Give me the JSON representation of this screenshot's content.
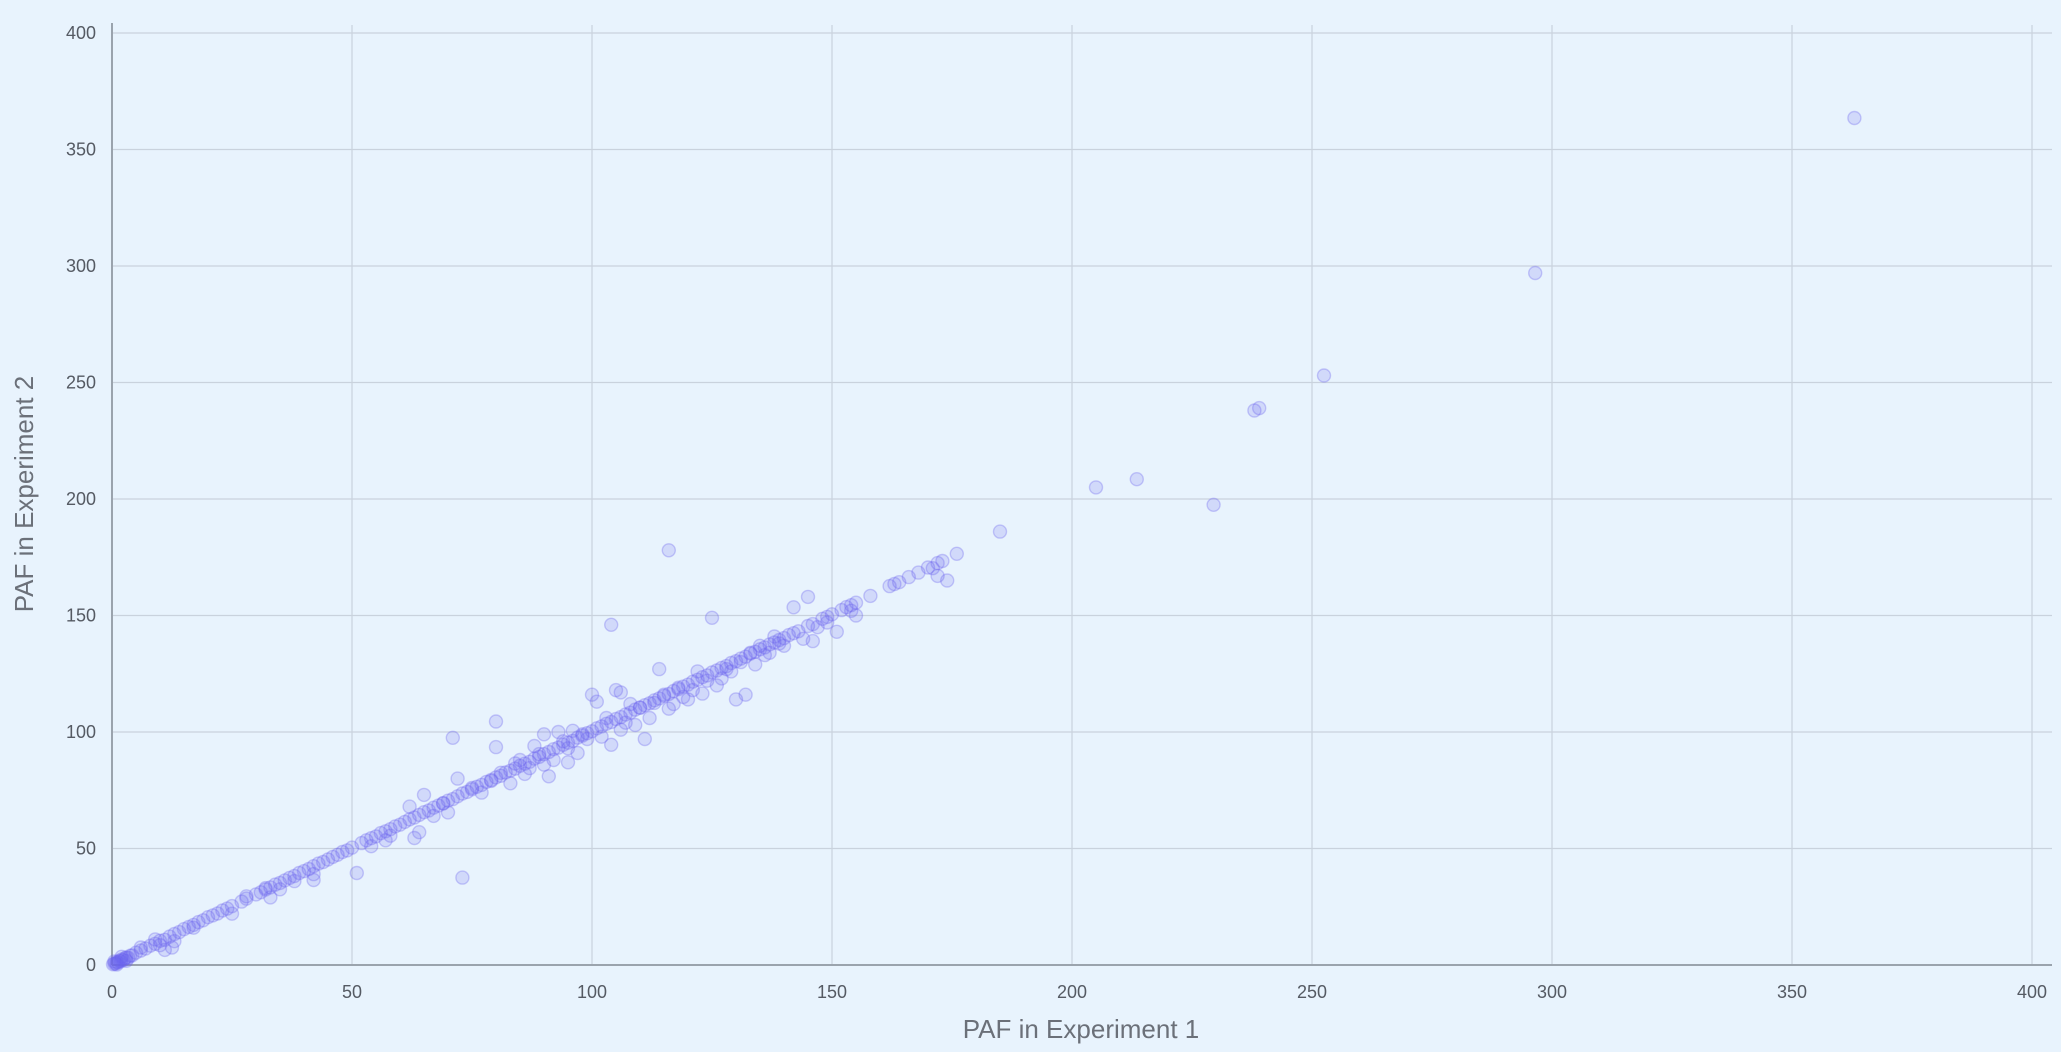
{
  "chart_data": {
    "type": "scatter",
    "title": "",
    "xlabel": "PAF in Experiment 1",
    "ylabel": "PAF in Experiment 2",
    "xlim": [
      0,
      400
    ],
    "ylim": [
      0,
      400
    ],
    "x_ticks": [
      0,
      50,
      100,
      150,
      200,
      250,
      300,
      350,
      400
    ],
    "y_ticks": [
      0,
      50,
      100,
      150,
      200,
      250,
      300,
      350,
      400
    ],
    "grid": true,
    "marker_color": "#6c63f0",
    "marker_opacity": 0.18,
    "series": [
      {
        "points": [
          [
            0.2,
            0.3
          ],
          [
            0.5,
            0.6
          ],
          [
            0.8,
            0.7
          ],
          [
            1,
            1.2
          ],
          [
            1.3,
            1.1
          ],
          [
            1.5,
            1.8
          ],
          [
            1.8,
            1.6
          ],
          [
            2,
            2.3
          ],
          [
            2.4,
            2.1
          ],
          [
            2.7,
            2.9
          ],
          [
            3,
            3.2
          ],
          [
            3.4,
            3.1
          ],
          [
            3.8,
            4
          ],
          [
            4.2,
            4.1
          ],
          [
            5,
            5.3
          ],
          [
            6,
            6.2
          ],
          [
            7,
            7.1
          ],
          [
            8,
            8.3
          ],
          [
            9,
            9.1
          ],
          [
            10,
            10.4
          ],
          [
            11,
            10.8
          ],
          [
            12,
            12.2
          ],
          [
            13,
            13.3
          ],
          [
            14,
            14.1
          ],
          [
            15,
            15.4
          ],
          [
            16,
            16.3
          ],
          [
            17,
            17.2
          ],
          [
            18,
            18.4
          ],
          [
            19,
            19.2
          ],
          [
            20,
            20.5
          ],
          [
            21,
            21.3
          ],
          [
            22,
            22.1
          ],
          [
            23,
            23.4
          ],
          [
            24,
            24.2
          ],
          [
            25,
            25.3
          ],
          [
            27,
            27.2
          ],
          [
            28,
            28.5
          ],
          [
            30,
            30.3
          ],
          [
            31,
            31.2
          ],
          [
            32,
            32.4
          ],
          [
            33,
            33.3
          ],
          [
            34,
            34.5
          ],
          [
            35,
            35.2
          ],
          [
            36,
            36.3
          ],
          [
            37,
            37.4
          ],
          [
            38,
            38.2
          ],
          [
            39,
            39.5
          ],
          [
            40,
            40.3
          ],
          [
            41,
            41.2
          ],
          [
            42,
            42.4
          ],
          [
            43,
            43.5
          ],
          [
            44,
            44.2
          ],
          [
            45,
            45.3
          ],
          [
            46,
            46.4
          ],
          [
            47,
            47.3
          ],
          [
            48,
            48.5
          ],
          [
            49,
            49.2
          ],
          [
            50,
            50.4
          ],
          [
            52,
            52.3
          ],
          [
            53,
            53.5
          ],
          [
            54,
            54.4
          ],
          [
            55,
            55.2
          ],
          [
            56,
            56.6
          ],
          [
            57,
            57.4
          ],
          [
            58,
            58.3
          ],
          [
            59,
            59.5
          ],
          [
            60,
            60.2
          ],
          [
            61,
            61.4
          ],
          [
            62,
            62.5
          ],
          [
            63,
            63.3
          ],
          [
            64,
            64.4
          ],
          [
            65,
            65.6
          ],
          [
            66,
            66.3
          ],
          [
            67,
            67.5
          ],
          [
            68,
            68.4
          ],
          [
            69,
            69.3
          ],
          [
            70,
            70.5
          ],
          [
            71,
            71.2
          ],
          [
            72,
            72.4
          ],
          [
            73,
            73.6
          ],
          [
            74,
            74.3
          ],
          [
            75,
            75.4
          ],
          [
            76,
            76.5
          ],
          [
            77,
            77.3
          ],
          [
            78,
            78.6
          ],
          [
            79,
            79.4
          ],
          [
            80,
            80.5
          ],
          [
            81,
            81.2
          ],
          [
            82,
            82.6
          ],
          [
            83,
            83.4
          ],
          [
            84,
            84.3
          ],
          [
            85,
            85.5
          ],
          [
            86,
            86.4
          ],
          [
            87,
            87.2
          ],
          [
            88,
            88.6
          ],
          [
            89,
            89.3
          ],
          [
            90,
            90.5
          ],
          [
            91,
            91.4
          ],
          [
            92,
            92.6
          ],
          [
            93,
            93.3
          ],
          [
            94,
            94.5
          ],
          [
            95,
            95.4
          ],
          [
            96,
            96.2
          ],
          [
            97,
            97.6
          ],
          [
            98,
            98.4
          ],
          [
            99,
            99.5
          ],
          [
            100,
            100.3
          ],
          [
            101,
            101.6
          ],
          [
            102,
            102.4
          ],
          [
            103,
            103.5
          ],
          [
            104,
            104.3
          ],
          [
            105,
            105.6
          ],
          [
            106,
            106.4
          ],
          [
            107,
            107.5
          ],
          [
            108,
            108.3
          ],
          [
            109,
            109.6
          ],
          [
            110,
            110.4
          ],
          [
            111,
            111.5
          ],
          [
            112,
            112.3
          ],
          [
            113,
            113.6
          ],
          [
            114,
            114.4
          ],
          [
            115,
            115.5
          ],
          [
            116,
            116.3
          ],
          [
            117,
            117.6
          ],
          [
            118,
            118.4
          ],
          [
            119,
            119.5
          ],
          [
            120,
            120.3
          ],
          [
            121,
            121.6
          ],
          [
            122,
            122.4
          ],
          [
            123,
            123.5
          ],
          [
            124,
            124.3
          ],
          [
            125,
            125.6
          ],
          [
            126,
            126.4
          ],
          [
            127,
            127.5
          ],
          [
            128,
            128.3
          ],
          [
            129,
            129.6
          ],
          [
            130,
            130.4
          ],
          [
            131,
            131.5
          ],
          [
            132,
            132.3
          ],
          [
            133,
            133.6
          ],
          [
            134,
            134.4
          ],
          [
            135,
            135.5
          ],
          [
            136,
            136.3
          ],
          [
            137,
            137.6
          ],
          [
            138,
            138.4
          ],
          [
            139,
            139.5
          ],
          [
            140,
            140.3
          ],
          [
            141,
            141.6
          ],
          [
            142,
            142.4
          ],
          [
            143,
            143.2
          ],
          [
            145,
            145.5
          ],
          [
            146,
            146.3
          ],
          [
            148,
            148.6
          ],
          [
            149,
            149.4
          ],
          [
            150,
            150.5
          ],
          [
            152,
            152.3
          ],
          [
            153,
            153.6
          ],
          [
            154,
            154.4
          ],
          [
            155,
            155.5
          ],
          [
            158,
            158.4
          ],
          [
            162,
            162.6
          ],
          [
            164,
            164.3
          ],
          [
            166,
            166.5
          ],
          [
            168,
            168.4
          ],
          [
            170,
            170.6
          ],
          [
            171,
            170.3
          ],
          [
            172,
            172.5
          ],
          [
            173,
            173.4
          ],
          [
            176,
            176.5
          ],
          [
            0.5,
            1.5
          ],
          [
            1,
            0.2
          ],
          [
            2,
            3.5
          ],
          [
            3,
            1.8
          ],
          [
            6,
            7.5
          ],
          [
            9,
            11
          ],
          [
            10,
            8.5
          ],
          [
            11,
            6.5
          ],
          [
            12.5,
            7.5
          ],
          [
            13,
            10.2
          ],
          [
            17,
            16
          ],
          [
            25,
            22
          ],
          [
            28,
            29.5
          ],
          [
            32,
            33
          ],
          [
            33,
            29
          ],
          [
            35,
            32.5
          ],
          [
            38,
            36
          ],
          [
            42,
            36.5
          ],
          [
            42,
            39
          ],
          [
            51,
            39.5
          ],
          [
            54,
            51
          ],
          [
            57,
            53.5
          ],
          [
            58,
            55.5
          ],
          [
            62,
            68
          ],
          [
            63,
            54.5
          ],
          [
            64,
            57
          ],
          [
            65,
            73
          ],
          [
            67,
            64
          ],
          [
            69,
            69.5
          ],
          [
            70,
            65.5
          ],
          [
            71,
            97.5
          ],
          [
            72,
            80
          ],
          [
            73,
            37.5
          ],
          [
            75,
            76
          ],
          [
            77,
            74
          ],
          [
            79,
            79
          ],
          [
            80,
            104.5
          ],
          [
            80,
            93.5
          ],
          [
            81,
            82.5
          ],
          [
            83,
            78
          ],
          [
            84,
            86.5
          ],
          [
            85,
            88
          ],
          [
            86,
            82
          ],
          [
            87,
            84.5
          ],
          [
            88,
            94
          ],
          [
            89,
            90.5
          ],
          [
            90,
            86
          ],
          [
            90,
            99
          ],
          [
            91,
            81
          ],
          [
            92,
            88
          ],
          [
            93,
            100
          ],
          [
            94,
            96
          ],
          [
            95,
            87
          ],
          [
            95,
            93
          ],
          [
            96,
            100.5
          ],
          [
            97,
            91
          ],
          [
            98,
            99
          ],
          [
            99,
            97
          ],
          [
            100,
            116
          ],
          [
            101,
            113
          ],
          [
            102,
            98
          ],
          [
            103,
            106
          ],
          [
            104,
            94.5
          ],
          [
            104,
            146
          ],
          [
            105,
            118
          ],
          [
            106,
            117
          ],
          [
            106,
            101
          ],
          [
            107,
            104
          ],
          [
            108,
            112
          ],
          [
            109,
            103
          ],
          [
            110,
            110.5
          ],
          [
            111,
            97
          ],
          [
            112,
            106
          ],
          [
            113,
            112.5
          ],
          [
            114,
            127
          ],
          [
            115,
            116
          ],
          [
            116,
            178
          ],
          [
            116,
            110
          ],
          [
            117,
            112
          ],
          [
            118,
            119
          ],
          [
            119,
            115
          ],
          [
            120,
            114
          ],
          [
            121,
            118
          ],
          [
            122,
            126
          ],
          [
            123,
            116.5
          ],
          [
            124,
            122
          ],
          [
            125,
            149
          ],
          [
            126,
            120
          ],
          [
            127,
            123
          ],
          [
            128,
            127
          ],
          [
            129,
            126
          ],
          [
            130,
            114
          ],
          [
            131,
            130
          ],
          [
            132,
            116
          ],
          [
            133,
            134
          ],
          [
            134,
            129
          ],
          [
            135,
            137
          ],
          [
            136,
            133
          ],
          [
            137,
            134
          ],
          [
            138,
            141
          ],
          [
            139,
            138
          ],
          [
            140,
            137
          ],
          [
            142,
            153.5
          ],
          [
            144,
            140
          ],
          [
            145,
            158
          ],
          [
            146,
            139
          ],
          [
            147,
            145
          ],
          [
            149,
            147
          ],
          [
            151,
            143
          ],
          [
            154,
            152
          ],
          [
            155,
            150
          ],
          [
            163,
            163.5
          ],
          [
            172,
            167
          ],
          [
            174,
            165
          ],
          [
            185,
            186
          ],
          [
            205,
            205
          ],
          [
            213.5,
            208.5
          ],
          [
            229.5,
            197.5
          ],
          [
            238,
            238
          ],
          [
            239,
            239
          ],
          [
            252.5,
            253
          ],
          [
            296.5,
            297
          ],
          [
            363,
            363.5
          ]
        ]
      }
    ]
  }
}
